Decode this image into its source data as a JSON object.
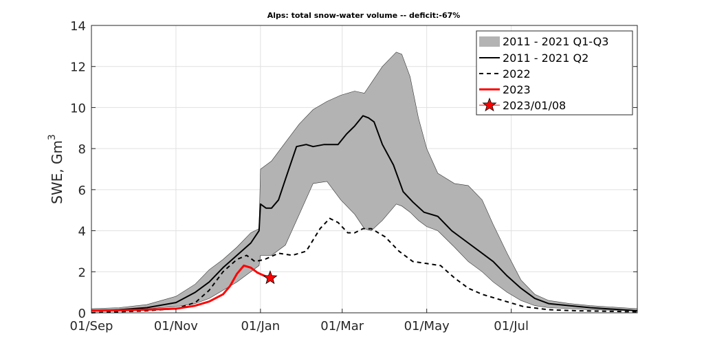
{
  "chart_data": {
    "type": "line",
    "title": "Alps: total snow-water volume -- deficit:-67%",
    "xlabel": "",
    "ylabel": "SWE, Gm",
    "ylabel_superscript": "3",
    "x_unit": "days since 01/Sep",
    "xlim": [
      0,
      394
    ],
    "ylim": [
      0,
      14
    ],
    "grid": true,
    "legend_position": "top-right",
    "xticks": [
      {
        "value": 0,
        "label": "01/Sep"
      },
      {
        "value": 61,
        "label": "01/Nov"
      },
      {
        "value": 122,
        "label": "01/Jan"
      },
      {
        "value": 181,
        "label": "01/Mar"
      },
      {
        "value": 242,
        "label": "01/May"
      },
      {
        "value": 303,
        "label": "01/Jul"
      }
    ],
    "yticks": [
      {
        "value": 0,
        "label": "0"
      },
      {
        "value": 2,
        "label": "2"
      },
      {
        "value": 4,
        "label": "4"
      },
      {
        "value": 6,
        "label": "6"
      },
      {
        "value": 8,
        "label": "8"
      },
      {
        "value": 10,
        "label": "10"
      },
      {
        "value": 12,
        "label": "12"
      },
      {
        "value": 14,
        "label": "14"
      }
    ],
    "band": {
      "name": "2011 - 2021 Q1-Q3",
      "color": "#b3b3b3",
      "x": [
        0,
        20,
        40,
        61,
        75,
        85,
        95,
        105,
        115,
        121,
        122,
        130,
        140,
        150,
        160,
        170,
        180,
        190,
        197,
        202,
        210,
        220,
        224,
        230,
        236,
        242,
        250,
        262,
        272,
        282,
        290,
        300,
        310,
        320,
        330,
        345,
        360,
        394
      ],
      "upper": [
        0.2,
        0.25,
        0.4,
        0.8,
        1.4,
        2.1,
        2.6,
        3.2,
        3.9,
        4.1,
        7.0,
        7.4,
        8.3,
        9.2,
        9.9,
        10.3,
        10.6,
        10.8,
        10.7,
        11.2,
        12.0,
        12.7,
        12.6,
        11.5,
        9.5,
        8.0,
        6.8,
        6.3,
        6.2,
        5.5,
        4.3,
        2.9,
        1.6,
        0.9,
        0.6,
        0.45,
        0.35,
        0.2
      ],
      "lower": [
        0.15,
        0.15,
        0.2,
        0.3,
        0.45,
        0.7,
        1.1,
        1.5,
        2.0,
        2.3,
        2.8,
        2.8,
        3.3,
        4.8,
        6.3,
        6.4,
        5.5,
        4.8,
        4.1,
        4.0,
        4.5,
        5.3,
        5.2,
        4.9,
        4.5,
        4.2,
        4.0,
        3.2,
        2.5,
        2.0,
        1.5,
        1.0,
        0.6,
        0.35,
        0.25,
        0.2,
        0.15,
        0.1
      ]
    },
    "series": [
      {
        "name": "2011 - 2021 Q2",
        "color": "#000000",
        "style": "solid",
        "x": [
          0,
          20,
          40,
          61,
          75,
          85,
          95,
          105,
          115,
          120,
          121,
          122,
          126,
          130,
          135,
          140,
          148,
          155,
          160,
          168,
          174,
          178,
          184,
          190,
          196,
          200,
          204,
          210,
          218,
          225,
          232,
          240,
          250,
          260,
          270,
          280,
          290,
          300,
          310,
          320,
          330,
          345,
          360,
          394
        ],
        "values": [
          0.1,
          0.15,
          0.25,
          0.5,
          1.0,
          1.5,
          2.2,
          2.8,
          3.4,
          3.9,
          4.0,
          5.3,
          5.1,
          5.1,
          5.5,
          6.5,
          8.1,
          8.2,
          8.1,
          8.2,
          8.2,
          8.2,
          8.7,
          9.1,
          9.6,
          9.5,
          9.3,
          8.2,
          7.2,
          5.9,
          5.4,
          4.9,
          4.7,
          4.0,
          3.5,
          3.0,
          2.5,
          1.8,
          1.2,
          0.7,
          0.45,
          0.35,
          0.25,
          0.1
        ]
      },
      {
        "name": "2022",
        "color": "#000000",
        "style": "dashed",
        "x": [
          0,
          20,
          40,
          61,
          75,
          85,
          95,
          105,
          112,
          118,
          125,
          135,
          145,
          155,
          165,
          172,
          178,
          185,
          190,
          196,
          202,
          212,
          222,
          232,
          242,
          252,
          262,
          272,
          282,
          292,
          302,
          312,
          330,
          350,
          394
        ],
        "values": [
          0.0,
          0.05,
          0.1,
          0.2,
          0.5,
          1.1,
          2.0,
          2.6,
          2.8,
          2.5,
          2.6,
          2.9,
          2.8,
          3.0,
          4.1,
          4.6,
          4.4,
          3.9,
          3.9,
          4.1,
          4.1,
          3.7,
          3.0,
          2.5,
          2.4,
          2.3,
          1.7,
          1.2,
          0.9,
          0.7,
          0.5,
          0.3,
          0.15,
          0.1,
          0.05
        ]
      },
      {
        "name": "2023",
        "color": "#ff0000",
        "style": "solid",
        "x": [
          0,
          20,
          40,
          61,
          75,
          85,
          95,
          100,
          105,
          110,
          115,
          120,
          125,
          129
        ],
        "values": [
          0.1,
          0.12,
          0.15,
          0.2,
          0.35,
          0.55,
          0.9,
          1.3,
          1.9,
          2.3,
          2.2,
          1.95,
          1.8,
          1.7
        ]
      }
    ],
    "marker": {
      "name": "2023/01/08",
      "x": 129,
      "y": 1.7,
      "color": "#ff0000",
      "symbol": "star"
    }
  }
}
